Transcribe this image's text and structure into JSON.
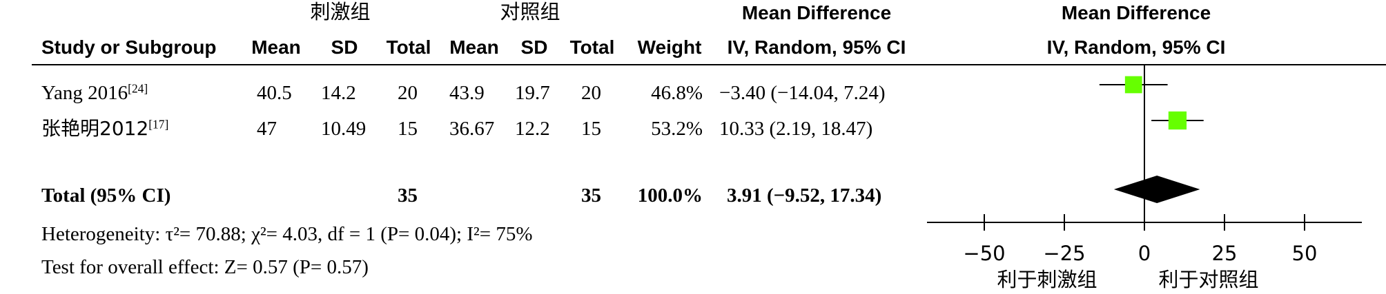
{
  "header": {
    "group_experimental": "刺激组",
    "group_control": "对照组",
    "mean_difference_col": "Mean Difference",
    "mean_difference_plot": "Mean Difference",
    "study_or_subgroup": "Study or Subgroup",
    "mean": "Mean",
    "sd": "SD",
    "total": "Total",
    "weight": "Weight",
    "method_col": "IV, Random, 95% CI",
    "method_plot": "IV, Random, 95% CI"
  },
  "footer": {
    "heterogeneity": "Heterogeneity: τ²= 70.88; χ²= 4.03, df = 1 (P= 0.04); I²= 75%",
    "overall_effect": "Test for overall effect: Z= 0.57 (P= 0.57)",
    "favours_left": "利于刺激组",
    "favours_right": "利于对照组"
  },
  "chart_data": {
    "type": "forest",
    "columns": [
      "Study or Subgroup",
      "Mean",
      "SD",
      "Total",
      "Mean",
      "SD",
      "Total",
      "Weight",
      "Mean Difference IV, Random, 95% CI"
    ],
    "studies": [
      {
        "name": "Yang 2016",
        "ref": "[24]",
        "exp_mean": "40.5",
        "exp_sd": "14.2",
        "exp_total": "20",
        "ctl_mean": "43.9",
        "ctl_sd": "19.7",
        "ctl_total": "20",
        "weight": "46.8%",
        "ci_text": "−3.40 (−14.04, 7.24)",
        "md": -3.4,
        "lo": -14.04,
        "hi": 7.24,
        "weight_value": 46.8
      },
      {
        "name": "张艳明2012",
        "ref": "[17]",
        "exp_mean": "47",
        "exp_sd": "10.49",
        "exp_total": "15",
        "ctl_mean": "36.67",
        "ctl_sd": "12.2",
        "ctl_total": "15",
        "weight": "53.2%",
        "ci_text": "10.33 (2.19, 18.47)",
        "md": 10.33,
        "lo": 2.19,
        "hi": 18.47,
        "weight_value": 53.2
      }
    ],
    "total": {
      "label": "Total (95% CI)",
      "exp_total": "35",
      "ctl_total": "35",
      "weight": "100.0%",
      "ci_text": "3.91 (−9.52, 17.34)",
      "md": 3.91,
      "lo": -9.52,
      "hi": 17.34
    },
    "x_axis": {
      "min": -50,
      "max": 50,
      "ticks": [
        -50,
        -25,
        0,
        25,
        50
      ],
      "tick_labels": [
        "−50",
        "−25",
        "0",
        "25",
        "50"
      ]
    },
    "colors": {
      "study_marker": "#66ff00",
      "summary": "#000000"
    }
  }
}
